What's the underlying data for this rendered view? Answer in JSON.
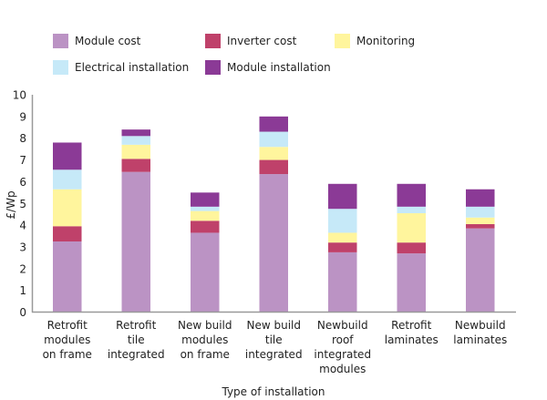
{
  "chart_data": {
    "type": "bar",
    "stacked": true,
    "title": "",
    "xlabel": "Type of installation",
    "ylabel": "£/Wp",
    "ylim": [
      0,
      10
    ],
    "yticks": [
      "0",
      "1",
      "2",
      "3",
      "4",
      "5",
      "6",
      "7",
      "8",
      "9",
      "10"
    ],
    "grid": false,
    "legend_position": "top",
    "categories": [
      [
        "Retrofit",
        "modules",
        "on frame"
      ],
      [
        "Retrofit",
        "tile",
        "integrated"
      ],
      [
        "New build",
        "modules",
        "on frame"
      ],
      [
        "New build",
        "tile",
        "integrated"
      ],
      [
        "Newbuild",
        "roof",
        "integrated",
        "modules"
      ],
      [
        "Retrofit",
        "laminates"
      ],
      [
        "Newbuild",
        "laminates"
      ]
    ],
    "series": [
      {
        "name": "Module cost",
        "color": "#BB93C4",
        "values": [
          3.25,
          6.45,
          3.65,
          6.35,
          2.75,
          2.7,
          3.85
        ]
      },
      {
        "name": "Inverter cost",
        "color": "#BF416A",
        "values": [
          0.7,
          0.6,
          0.55,
          0.65,
          0.45,
          0.5,
          0.2
        ]
      },
      {
        "name": "Monitoring",
        "color": "#FFF59D",
        "values": [
          1.7,
          0.65,
          0.45,
          0.6,
          0.45,
          1.35,
          0.3
        ]
      },
      {
        "name": "Electrical installation",
        "color": "#C6E9F8",
        "values": [
          0.9,
          0.4,
          0.2,
          0.7,
          1.1,
          0.3,
          0.5
        ]
      },
      {
        "name": "Module installation",
        "color": "#8B3A96",
        "values": [
          1.25,
          0.3,
          0.65,
          0.7,
          1.15,
          1.05,
          0.8
        ]
      }
    ]
  }
}
